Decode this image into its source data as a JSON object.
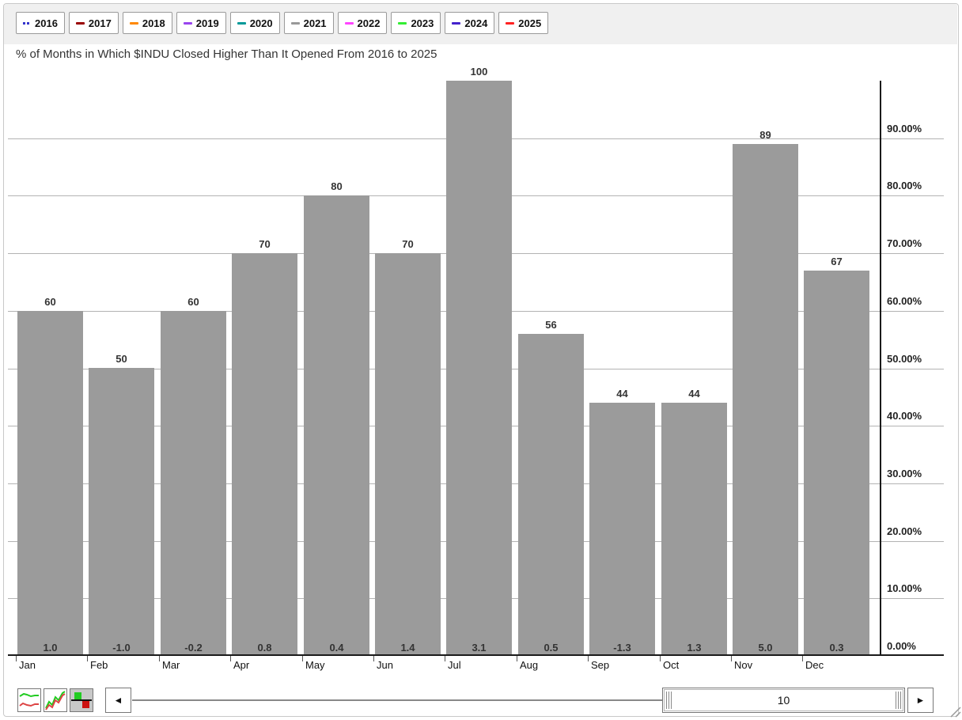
{
  "legend": {
    "items": [
      {
        "label": "2016",
        "color": "#3333cc",
        "style": "dotted"
      },
      {
        "label": "2017",
        "color": "#990000",
        "style": "dash"
      },
      {
        "label": "2018",
        "color": "#ff8800",
        "style": "dash"
      },
      {
        "label": "2019",
        "color": "#9944ee",
        "style": "dash"
      },
      {
        "label": "2020",
        "color": "#009999",
        "style": "dash"
      },
      {
        "label": "2021",
        "color": "#999999",
        "style": "dash"
      },
      {
        "label": "2022",
        "color": "#ff44ff",
        "style": "dash"
      },
      {
        "label": "2023",
        "color": "#33ee33",
        "style": "dash"
      },
      {
        "label": "2024",
        "color": "#4422cc",
        "style": "dash"
      },
      {
        "label": "2025",
        "color": "#ff2222",
        "style": "dash"
      }
    ]
  },
  "chart_data": {
    "type": "bar",
    "title": "% of Months in Which $INDU Closed Higher Than It Opened From 2016 to 2025",
    "categories": [
      "Jan",
      "Feb",
      "Mar",
      "Apr",
      "May",
      "Jun",
      "Jul",
      "Aug",
      "Sep",
      "Oct",
      "Nov",
      "Dec"
    ],
    "values": [
      60,
      50,
      60,
      70,
      80,
      70,
      100,
      56,
      44,
      44,
      89,
      67
    ],
    "value_labels": [
      "60",
      "50",
      "60",
      "70",
      "80",
      "70",
      "100",
      "56",
      "44",
      "44",
      "89",
      "67"
    ],
    "avg_change_labels": [
      "1.0",
      "-1.0",
      "-0.2",
      "0.8",
      "0.4",
      "1.4",
      "3.1",
      "0.5",
      "-1.3",
      "1.3",
      "5.0",
      "0.3"
    ],
    "y_ticks": [
      "0.00%",
      "10.00%",
      "20.00%",
      "30.00%",
      "40.00%",
      "50.00%",
      "60.00%",
      "70.00%",
      "80.00%",
      "90.00%"
    ],
    "ylim": [
      0,
      100
    ],
    "grid": true,
    "y_axis_side": "right",
    "legend_position": "top",
    "bar_color": "#9b9b9b",
    "gridline_color": "#b3b3b3",
    "axis_color": "#1a1a1a"
  },
  "toolbar": {
    "chart_type_buttons": [
      {
        "icon": "two-lines-chart-icon",
        "selected": false
      },
      {
        "icon": "multi-line-chart-icon",
        "selected": false
      },
      {
        "icon": "bar-style-chart-icon",
        "selected": true
      }
    ],
    "scrollbar": {
      "left_arrow_icon": "◄",
      "right_arrow_icon": "►",
      "thumb_value": "10"
    }
  }
}
